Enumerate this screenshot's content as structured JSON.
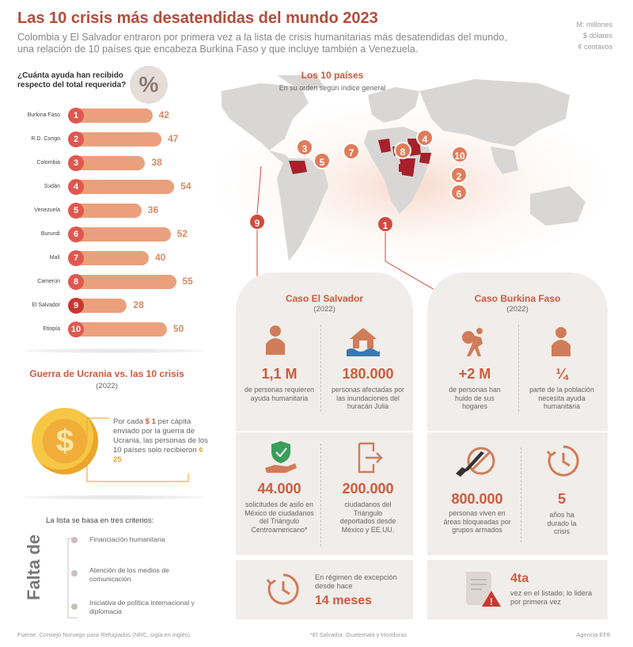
{
  "header": {
    "title": "Las 10 crisis más desatendidas del mundo 2023",
    "subtitle": "Colombia y El Salvador entraron por primera vez a la lista de crisis humanitarias más desatendidas del mundo, una relación de 10 países que encabeza Burkina Faso y que incluye también a Venezuela.",
    "units": [
      "M: millones",
      "$ dólares",
      "¢ centavos"
    ]
  },
  "aid": {
    "question": "¿Cuánta ayuda han recibido respecto del total requerida?",
    "symbol": "%",
    "rows": [
      {
        "rank": "1",
        "country": "Burkina Faso",
        "value": "42"
      },
      {
        "rank": "2",
        "country": "R.D. Congo",
        "value": "47"
      },
      {
        "rank": "3",
        "country": "Colombia",
        "value": "38"
      },
      {
        "rank": "4",
        "country": "Sudán",
        "value": "54"
      },
      {
        "rank": "5",
        "country": "Venezuela",
        "value": "36"
      },
      {
        "rank": "6",
        "country": "Burundi",
        "value": "52"
      },
      {
        "rank": "7",
        "country": "Malí",
        "value": "40"
      },
      {
        "rank": "8",
        "country": "Camerún",
        "value": "55"
      },
      {
        "rank": "9",
        "country": "El Salvador",
        "value": "28"
      },
      {
        "rank": "10",
        "country": "Etiopía",
        "value": "50"
      }
    ]
  },
  "map": {
    "title": "Los 10 países",
    "subtitle": "En su orden según índice general",
    "pins": [
      "3",
      "5",
      "9",
      "7",
      "8",
      "4",
      "10",
      "2",
      "6",
      "1"
    ]
  },
  "ukraine": {
    "title": "Guerra de Ucrania vs. las 10 crisis",
    "year": "(2022)",
    "text_a": "Por cada",
    "amount_a": "$ 1",
    "text_b": "per cápita enviado por la guerra de Ucrania, las personas de los 10 países solo recibieron",
    "amount_b": "¢ 25",
    "coin": "$"
  },
  "criteria": {
    "heading": "La lista se basa en tres criterios:",
    "label": "Falta de",
    "items": [
      "Financiación humanitaria",
      "Atención de los medios de comunicación",
      "Iniciativa de política internacional y diplomacia"
    ]
  },
  "salvador": {
    "title": "Caso El Salvador",
    "year": "(2022)",
    "stats": [
      {
        "value": "1,1 M",
        "text": "de personas requieren ayuda humanitaria",
        "icon": "person-icon"
      },
      {
        "value": "180.000",
        "text": "personas afectadas por las inundaciones del huracán Julia",
        "icon": "flood-house-icon"
      },
      {
        "value": "44.000",
        "text": "solicitudes de asilo en México de ciudadanos del Triángulo Centroamericano*",
        "icon": "shield-hand-icon"
      },
      {
        "value": "200.000",
        "text": "ciudadanos del Triángulo deportados desde México y EE.UU.",
        "icon": "exit-door-icon"
      },
      {
        "value": "14 meses",
        "text": "En régimen de excepción desde hace",
        "icon": "clock-icon"
      }
    ]
  },
  "burkina": {
    "title": "Caso Burkina Faso",
    "year": "(2022)",
    "stats": [
      {
        "value": "+2 M",
        "text": "de personas han huido de sus hogares",
        "icon": "fleeing-person-icon"
      },
      {
        "value": "¼",
        "text": "parte de la población necesita ayuda humanitaria",
        "icon": "person-icon"
      },
      {
        "value": "800.000",
        "text": "personas viven en áreas bloqueadas por grupos armados",
        "icon": "no-weapons-icon"
      },
      {
        "value": "5",
        "text": "años ha durado la crisis",
        "icon": "clock-icon"
      },
      {
        "value": "4ta",
        "text": "vez en el listado; lo lidera por primera vez",
        "icon": "warning-document-icon"
      }
    ]
  },
  "footer": {
    "source": "Fuente: Consejo Noruego para Refugiados (NRC, sigla en inglés)",
    "note": "*El Salvador, Guatemala y Honduras",
    "agency": "Agencia EFE"
  },
  "colors": {
    "accent": "#d05a3c",
    "bar": "#eaa07c",
    "rank": "#e0574f",
    "card": "#f1edea",
    "map": "#d9d7d6",
    "highlight": "#a8202a"
  }
}
